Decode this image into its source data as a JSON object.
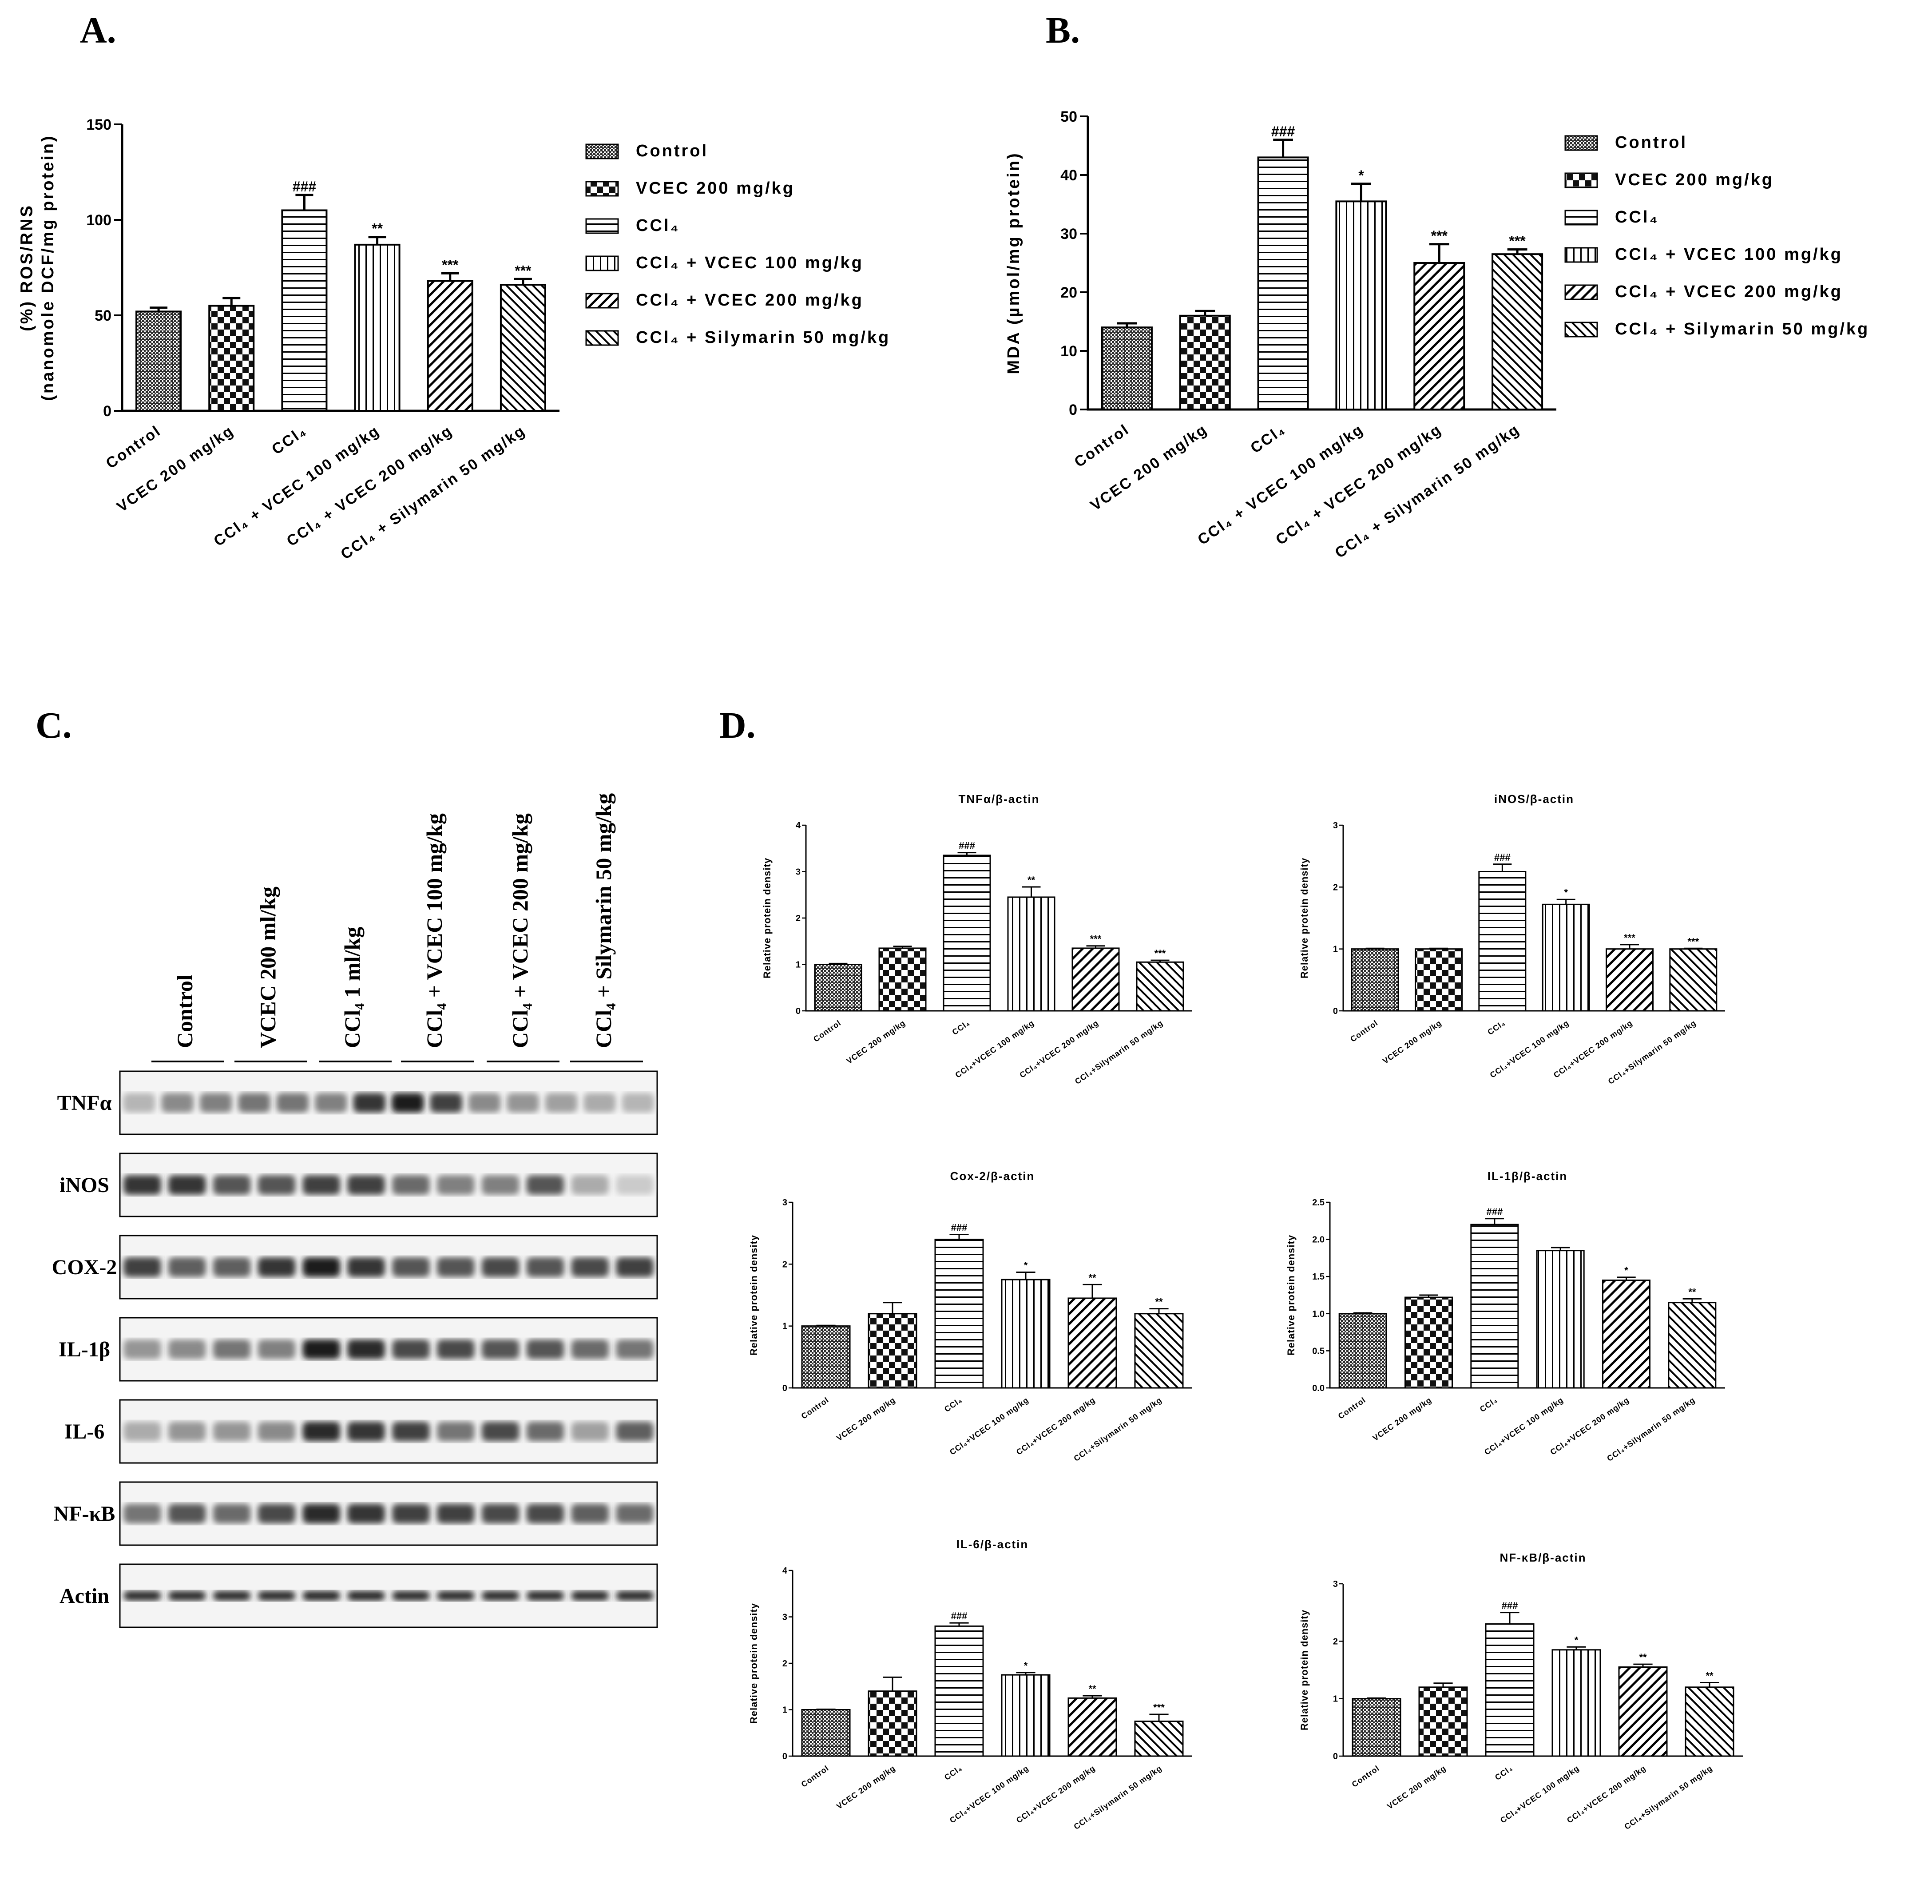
{
  "panels": {
    "a": "A.",
    "b": "B.",
    "c": "C.",
    "d": "D."
  },
  "colors": {
    "ink": "#000000",
    "paper": "#ffffff",
    "bar_dark": "#2a2a2a",
    "band": "#1a1a1a"
  },
  "chart_data": [
    {
      "id": "A",
      "type": "bar",
      "ylabel": "(%) ROS/RNS\n(nanomole DCF/mg protein)",
      "ylim": [
        0,
        150
      ],
      "yticks": [
        "0",
        "50",
        "100",
        "150"
      ],
      "categories": [
        "Control",
        "VCEC 200 mg/kg",
        "CCl₄",
        "CCl₄ + VCEC 100 mg/kg",
        "CCl₄ + VCEC 200 mg/kg",
        "CCl₄ + Silymarin 50 mg/kg"
      ],
      "values": [
        52,
        55,
        105,
        87,
        68,
        66
      ],
      "errors": [
        2,
        4,
        8,
        4,
        4,
        3
      ],
      "annotations": [
        "",
        "",
        "###",
        "**",
        "***",
        "***"
      ],
      "patterns": [
        "dense",
        "checker",
        "hlines",
        "vlines",
        "diag-r",
        "diag-l"
      ],
      "legend": [
        "Control",
        "VCEC 200 mg/kg",
        "CCl₄",
        "CCl₄ + VCEC 100 mg/kg",
        "CCl₄ + VCEC 200 mg/kg",
        "CCl₄ + Silymarin 50 mg/kg"
      ]
    },
    {
      "id": "B",
      "type": "bar",
      "ylabel": "MDA (µmol/mg protein)",
      "ylim": [
        0,
        50
      ],
      "yticks": [
        "0",
        "10",
        "20",
        "30",
        "40",
        "50"
      ],
      "categories": [
        "Control",
        "VCEC 200 mg/kg",
        "CCl₄",
        "CCl₄ + VCEC 100 mg/kg",
        "CCl₄ + VCEC 200 mg/kg",
        "CCl₄ + Silymarin 50 mg/kg"
      ],
      "values": [
        14,
        16,
        43,
        35.5,
        25,
        26.5
      ],
      "errors": [
        0.7,
        0.8,
        3,
        3,
        3.2,
        0.8
      ],
      "annotations": [
        "",
        "",
        "###",
        "*",
        "***",
        "***"
      ],
      "patterns": [
        "dense",
        "checker",
        "hlines",
        "vlines",
        "diag-r",
        "diag-l"
      ],
      "legend": [
        "Control",
        "VCEC 200 mg/kg",
        "CCl₄",
        "CCl₄ + VCEC 100 mg/kg",
        "CCl₄ + VCEC 200 mg/kg",
        "CCl₄ + Silymarin 50 mg/kg"
      ]
    },
    {
      "id": "D1",
      "type": "bar",
      "title": "TNFα/β-actin",
      "ylabel": "Relative protein density",
      "ylim": [
        0,
        4
      ],
      "yticks": [
        "0",
        "1",
        "2",
        "3",
        "4"
      ],
      "categories": [
        "Control",
        "VCEC 200 mg/kg",
        "CCl₄",
        "CCl₄+VCEC 100 mg/kg",
        "CCl₄+VCEC 200 mg/kg",
        "CCl₄+Silymarin 50 mg/kg"
      ],
      "values": [
        1.0,
        1.35,
        3.35,
        2.45,
        1.35,
        1.05
      ],
      "errors": [
        0.02,
        0.04,
        0.06,
        0.22,
        0.05,
        0.04
      ],
      "annotations": [
        "",
        "",
        "###",
        "**",
        "***",
        "***"
      ],
      "patterns": [
        "dense",
        "checker",
        "hlines",
        "vlines",
        "diag-r",
        "diag-l"
      ]
    },
    {
      "id": "D2",
      "type": "bar",
      "title": "iNOS/β-actin",
      "ylabel": "Relative protein density",
      "ylim": [
        0,
        3
      ],
      "yticks": [
        "0",
        "1",
        "2",
        "3"
      ],
      "categories": [
        "Control",
        "VCEC 200 mg/kg",
        "CCl₄",
        "CCl₄+VCEC 100 mg/kg",
        "CCl₄+VCEC 200 mg/kg",
        "CCl₄+Silymarin 50 mg/kg"
      ],
      "values": [
        1.0,
        1.0,
        2.25,
        1.72,
        1.0,
        1.0
      ],
      "errors": [
        0.01,
        0.01,
        0.12,
        0.08,
        0.07,
        0.01
      ],
      "annotations": [
        "",
        "",
        "###",
        "*",
        "***",
        "***"
      ],
      "patterns": [
        "dense",
        "checker",
        "hlines",
        "vlines",
        "diag-r",
        "diag-l"
      ]
    },
    {
      "id": "D3",
      "type": "bar",
      "title": "Cox-2/β-actin",
      "ylabel": "Relative protein density",
      "ylim": [
        0,
        3
      ],
      "yticks": [
        "0",
        "1",
        "2",
        "3"
      ],
      "categories": [
        "Control",
        "VCEC 200 mg/kg",
        "CCl₄",
        "CCl₄+VCEC 100 mg/kg",
        "CCl₄+VCEC 200 mg/kg",
        "CCl₄+Silymarin 50 mg/kg"
      ],
      "values": [
        1.0,
        1.2,
        2.4,
        1.75,
        1.45,
        1.2
      ],
      "errors": [
        0.01,
        0.18,
        0.08,
        0.12,
        0.22,
        0.08
      ],
      "annotations": [
        "",
        "",
        "###",
        "*",
        "**",
        "**"
      ],
      "patterns": [
        "dense",
        "checker",
        "hlines",
        "vlines",
        "diag-r",
        "diag-l"
      ]
    },
    {
      "id": "D4",
      "type": "bar",
      "title": "IL-1β/β-actin",
      "ylabel": "Relative protein density",
      "ylim": [
        0,
        2.5
      ],
      "yticks": [
        "0.0",
        "0.5",
        "1.0",
        "1.5",
        "2.0",
        "2.5"
      ],
      "categories": [
        "Control",
        "VCEC 200 mg/kg",
        "CCl₄",
        "CCl₄+VCEC 100 mg/kg",
        "CCl₄+VCEC 200 mg/kg",
        "CCl₄+Silymarin 50 mg/kg"
      ],
      "values": [
        1.0,
        1.22,
        2.2,
        1.85,
        1.45,
        1.15
      ],
      "errors": [
        0.01,
        0.03,
        0.08,
        0.04,
        0.04,
        0.05
      ],
      "annotations": [
        "",
        "",
        "###",
        "",
        "*",
        "**"
      ],
      "patterns": [
        "dense",
        "checker",
        "hlines",
        "vlines",
        "diag-r",
        "diag-l"
      ]
    },
    {
      "id": "D5",
      "type": "bar",
      "title": "IL-6/β-actin",
      "ylabel": "Relative protein density",
      "ylim": [
        0,
        4
      ],
      "yticks": [
        "0",
        "1",
        "2",
        "3",
        "4"
      ],
      "categories": [
        "Control",
        "VCEC 200 mg/kg",
        "CCl₄",
        "CCl₄+VCEC 100 mg/kg",
        "CCl₄+VCEC 200 mg/kg",
        "CCl₄+Silymarin 50 mg/kg"
      ],
      "values": [
        1.0,
        1.4,
        2.8,
        1.75,
        1.25,
        0.75
      ],
      "errors": [
        0.01,
        0.3,
        0.07,
        0.05,
        0.05,
        0.15
      ],
      "annotations": [
        "",
        "",
        "###",
        "*",
        "**",
        "***"
      ],
      "patterns": [
        "dense",
        "checker",
        "hlines",
        "vlines",
        "diag-r",
        "diag-l"
      ]
    },
    {
      "id": "D6",
      "type": "bar",
      "title": "NF-κB/β-actin",
      "ylabel": "Relative protein density",
      "ylim": [
        0,
        3
      ],
      "yticks": [
        "0",
        "1",
        "2",
        "3"
      ],
      "categories": [
        "Control",
        "VCEC 200 mg/kg",
        "CCl₄",
        "CCl₄+VCEC 100 mg/kg",
        "CCl₄+VCEC 200 mg/kg",
        "CCl₄+Silymarin 50 mg/kg"
      ],
      "values": [
        1.0,
        1.2,
        2.3,
        1.85,
        1.55,
        1.2
      ],
      "errors": [
        0.01,
        0.07,
        0.2,
        0.05,
        0.05,
        0.08
      ],
      "annotations": [
        "",
        "",
        "###",
        "*",
        "**",
        "**"
      ],
      "patterns": [
        "dense",
        "checker",
        "hlines",
        "vlines",
        "diag-r",
        "diag-l"
      ]
    }
  ],
  "blot": {
    "lane_groups": [
      "Control",
      "VCEC 200 ml/kg",
      "CCl₄ 1 ml/kg",
      "CCl₄ + VCEC 100 mg/kg",
      "CCl₄ + VCEC 200 mg/kg",
      "CCl₄ + Silymarin 50 mg/kg"
    ],
    "proteins": [
      {
        "name": "TNFα",
        "intensity": [
          0.25,
          0.45,
          0.5,
          0.55,
          0.55,
          0.5,
          0.85,
          0.95,
          0.8,
          0.45,
          0.4,
          0.35,
          0.3,
          0.25
        ]
      },
      {
        "name": "iNOS",
        "intensity": [
          0.85,
          0.85,
          0.7,
          0.7,
          0.8,
          0.8,
          0.6,
          0.5,
          0.5,
          0.7,
          0.3,
          0.15
        ]
      },
      {
        "name": "COX-2",
        "intensity": [
          0.8,
          0.65,
          0.65,
          0.85,
          0.95,
          0.85,
          0.7,
          0.7,
          0.75,
          0.7,
          0.75,
          0.8
        ]
      },
      {
        "name": "IL-1β",
        "intensity": [
          0.4,
          0.45,
          0.55,
          0.5,
          0.95,
          0.9,
          0.75,
          0.75,
          0.7,
          0.7,
          0.6,
          0.55
        ]
      },
      {
        "name": "IL-6",
        "intensity": [
          0.3,
          0.4,
          0.4,
          0.45,
          0.9,
          0.85,
          0.8,
          0.55,
          0.75,
          0.6,
          0.35,
          0.65
        ]
      },
      {
        "name": "NF-κB",
        "intensity": [
          0.55,
          0.7,
          0.6,
          0.75,
          0.9,
          0.85,
          0.8,
          0.8,
          0.75,
          0.75,
          0.65,
          0.6
        ]
      },
      {
        "name": "Actin",
        "intensity": [
          0.9,
          0.9,
          0.9,
          0.9,
          0.92,
          0.92,
          0.9,
          0.9,
          0.9,
          0.9,
          0.9,
          0.9
        ]
      }
    ]
  }
}
